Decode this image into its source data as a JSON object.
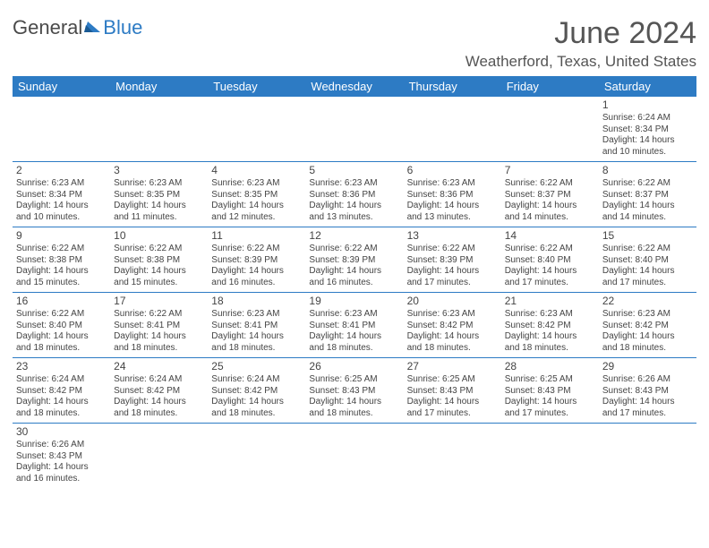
{
  "logo": {
    "part1": "General",
    "part2": "Blue"
  },
  "title": {
    "month": "June 2024",
    "location": "Weatherford, Texas, United States"
  },
  "colors": {
    "accent": "#2d7bc4",
    "text": "#444444",
    "bg": "#ffffff"
  },
  "weekdays": [
    "Sunday",
    "Monday",
    "Tuesday",
    "Wednesday",
    "Thursday",
    "Friday",
    "Saturday"
  ],
  "layout": {
    "weeks": 6,
    "cols": 7,
    "first_weekday_index": 6,
    "days_in_month": 30
  },
  "days": {
    "1": {
      "sunrise": "6:24 AM",
      "sunset": "8:34 PM",
      "dl1": "Daylight: 14 hours",
      "dl2": "and 10 minutes."
    },
    "2": {
      "sunrise": "6:23 AM",
      "sunset": "8:34 PM",
      "dl1": "Daylight: 14 hours",
      "dl2": "and 10 minutes."
    },
    "3": {
      "sunrise": "6:23 AM",
      "sunset": "8:35 PM",
      "dl1": "Daylight: 14 hours",
      "dl2": "and 11 minutes."
    },
    "4": {
      "sunrise": "6:23 AM",
      "sunset": "8:35 PM",
      "dl1": "Daylight: 14 hours",
      "dl2": "and 12 minutes."
    },
    "5": {
      "sunrise": "6:23 AM",
      "sunset": "8:36 PM",
      "dl1": "Daylight: 14 hours",
      "dl2": "and 13 minutes."
    },
    "6": {
      "sunrise": "6:23 AM",
      "sunset": "8:36 PM",
      "dl1": "Daylight: 14 hours",
      "dl2": "and 13 minutes."
    },
    "7": {
      "sunrise": "6:22 AM",
      "sunset": "8:37 PM",
      "dl1": "Daylight: 14 hours",
      "dl2": "and 14 minutes."
    },
    "8": {
      "sunrise": "6:22 AM",
      "sunset": "8:37 PM",
      "dl1": "Daylight: 14 hours",
      "dl2": "and 14 minutes."
    },
    "9": {
      "sunrise": "6:22 AM",
      "sunset": "8:38 PM",
      "dl1": "Daylight: 14 hours",
      "dl2": "and 15 minutes."
    },
    "10": {
      "sunrise": "6:22 AM",
      "sunset": "8:38 PM",
      "dl1": "Daylight: 14 hours",
      "dl2": "and 15 minutes."
    },
    "11": {
      "sunrise": "6:22 AM",
      "sunset": "8:39 PM",
      "dl1": "Daylight: 14 hours",
      "dl2": "and 16 minutes."
    },
    "12": {
      "sunrise": "6:22 AM",
      "sunset": "8:39 PM",
      "dl1": "Daylight: 14 hours",
      "dl2": "and 16 minutes."
    },
    "13": {
      "sunrise": "6:22 AM",
      "sunset": "8:39 PM",
      "dl1": "Daylight: 14 hours",
      "dl2": "and 17 minutes."
    },
    "14": {
      "sunrise": "6:22 AM",
      "sunset": "8:40 PM",
      "dl1": "Daylight: 14 hours",
      "dl2": "and 17 minutes."
    },
    "15": {
      "sunrise": "6:22 AM",
      "sunset": "8:40 PM",
      "dl1": "Daylight: 14 hours",
      "dl2": "and 17 minutes."
    },
    "16": {
      "sunrise": "6:22 AM",
      "sunset": "8:40 PM",
      "dl1": "Daylight: 14 hours",
      "dl2": "and 18 minutes."
    },
    "17": {
      "sunrise": "6:22 AM",
      "sunset": "8:41 PM",
      "dl1": "Daylight: 14 hours",
      "dl2": "and 18 minutes."
    },
    "18": {
      "sunrise": "6:23 AM",
      "sunset": "8:41 PM",
      "dl1": "Daylight: 14 hours",
      "dl2": "and 18 minutes."
    },
    "19": {
      "sunrise": "6:23 AM",
      "sunset": "8:41 PM",
      "dl1": "Daylight: 14 hours",
      "dl2": "and 18 minutes."
    },
    "20": {
      "sunrise": "6:23 AM",
      "sunset": "8:42 PM",
      "dl1": "Daylight: 14 hours",
      "dl2": "and 18 minutes."
    },
    "21": {
      "sunrise": "6:23 AM",
      "sunset": "8:42 PM",
      "dl1": "Daylight: 14 hours",
      "dl2": "and 18 minutes."
    },
    "22": {
      "sunrise": "6:23 AM",
      "sunset": "8:42 PM",
      "dl1": "Daylight: 14 hours",
      "dl2": "and 18 minutes."
    },
    "23": {
      "sunrise": "6:24 AM",
      "sunset": "8:42 PM",
      "dl1": "Daylight: 14 hours",
      "dl2": "and 18 minutes."
    },
    "24": {
      "sunrise": "6:24 AM",
      "sunset": "8:42 PM",
      "dl1": "Daylight: 14 hours",
      "dl2": "and 18 minutes."
    },
    "25": {
      "sunrise": "6:24 AM",
      "sunset": "8:42 PM",
      "dl1": "Daylight: 14 hours",
      "dl2": "and 18 minutes."
    },
    "26": {
      "sunrise": "6:25 AM",
      "sunset": "8:43 PM",
      "dl1": "Daylight: 14 hours",
      "dl2": "and 18 minutes."
    },
    "27": {
      "sunrise": "6:25 AM",
      "sunset": "8:43 PM",
      "dl1": "Daylight: 14 hours",
      "dl2": "and 17 minutes."
    },
    "28": {
      "sunrise": "6:25 AM",
      "sunset": "8:43 PM",
      "dl1": "Daylight: 14 hours",
      "dl2": "and 17 minutes."
    },
    "29": {
      "sunrise": "6:26 AM",
      "sunset": "8:43 PM",
      "dl1": "Daylight: 14 hours",
      "dl2": "and 17 minutes."
    },
    "30": {
      "sunrise": "6:26 AM",
      "sunset": "8:43 PM",
      "dl1": "Daylight: 14 hours",
      "dl2": "and 16 minutes."
    }
  },
  "labels": {
    "sunrise_prefix": "Sunrise: ",
    "sunset_prefix": "Sunset: "
  }
}
